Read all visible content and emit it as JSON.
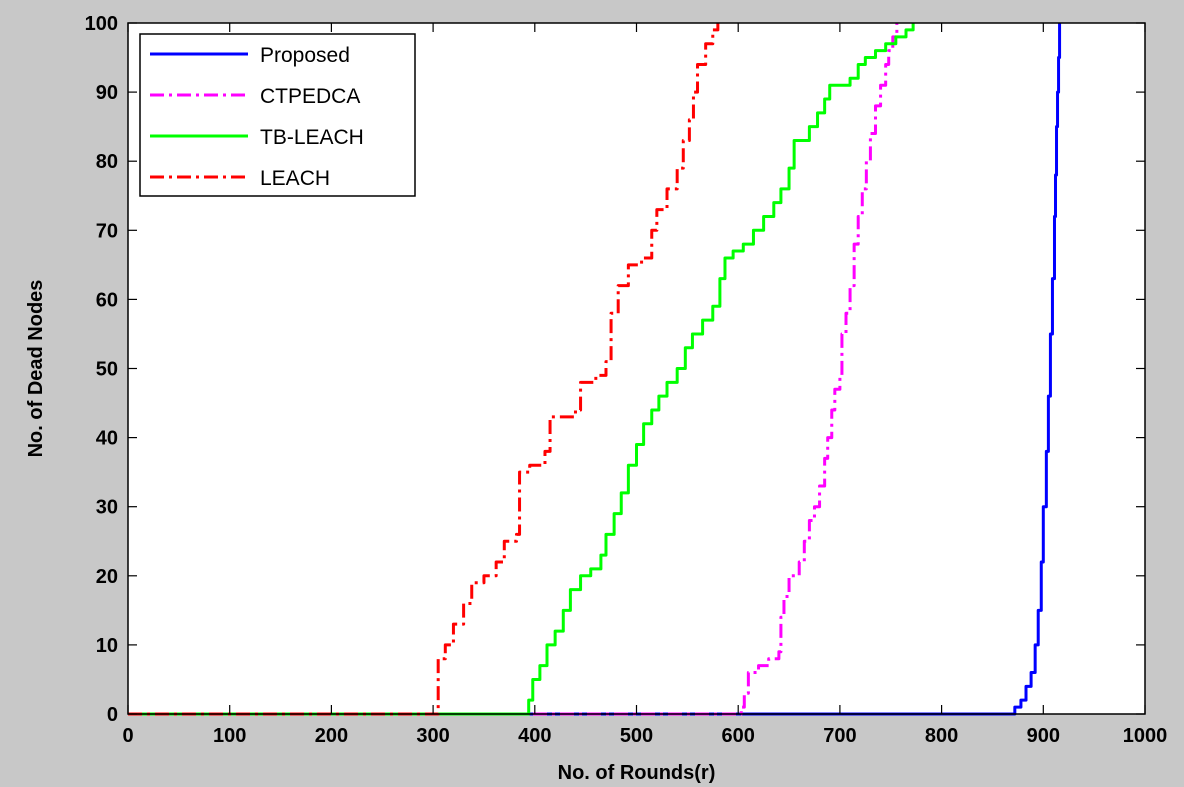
{
  "chart_data": {
    "type": "line",
    "title": "",
    "xlabel": "No. of Rounds(r)",
    "ylabel": "No. of Dead Nodes",
    "xlim": [
      0,
      1000
    ],
    "ylim": [
      0,
      100
    ],
    "xticks": [
      0,
      100,
      200,
      300,
      400,
      500,
      600,
      700,
      800,
      900,
      1000
    ],
    "yticks": [
      0,
      10,
      20,
      30,
      40,
      50,
      60,
      70,
      80,
      90,
      100
    ],
    "grid": false,
    "legend_position": "top-left",
    "series": [
      {
        "name": "Proposed",
        "color": "#0000ff",
        "style": "solid",
        "points": [
          [
            0,
            0
          ],
          [
            865,
            0
          ],
          [
            872,
            1
          ],
          [
            878,
            2
          ],
          [
            883,
            4
          ],
          [
            888,
            6
          ],
          [
            892,
            10
          ],
          [
            895,
            15
          ],
          [
            898,
            22
          ],
          [
            900,
            30
          ],
          [
            903,
            38
          ],
          [
            905,
            46
          ],
          [
            907,
            55
          ],
          [
            909,
            63
          ],
          [
            911,
            72
          ],
          [
            912,
            78
          ],
          [
            913,
            85
          ],
          [
            914,
            90
          ],
          [
            915,
            95
          ],
          [
            916,
            100
          ]
        ]
      },
      {
        "name": "CTPEDCA",
        "color": "#ff00ff",
        "style": "dashdot",
        "points": [
          [
            0,
            0
          ],
          [
            600,
            0
          ],
          [
            603,
            1
          ],
          [
            606,
            3
          ],
          [
            610,
            6
          ],
          [
            620,
            7
          ],
          [
            630,
            8
          ],
          [
            640,
            9
          ],
          [
            642,
            14
          ],
          [
            645,
            17
          ],
          [
            650,
            20
          ],
          [
            660,
            22
          ],
          [
            665,
            25
          ],
          [
            670,
            28
          ],
          [
            675,
            30
          ],
          [
            680,
            33
          ],
          [
            685,
            37
          ],
          [
            688,
            40
          ],
          [
            692,
            44
          ],
          [
            695,
            47
          ],
          [
            700,
            49
          ],
          [
            702,
            55
          ],
          [
            706,
            58
          ],
          [
            710,
            62
          ],
          [
            714,
            68
          ],
          [
            718,
            72
          ],
          [
            722,
            76
          ],
          [
            726,
            80
          ],
          [
            730,
            84
          ],
          [
            735,
            88
          ],
          [
            740,
            91
          ],
          [
            745,
            94
          ],
          [
            748,
            96
          ],
          [
            752,
            98
          ],
          [
            756,
            100
          ]
        ]
      },
      {
        "name": "TB-LEACH",
        "color": "#00ff00",
        "style": "solid",
        "points": [
          [
            0,
            0
          ],
          [
            390,
            0
          ],
          [
            394,
            2
          ],
          [
            398,
            5
          ],
          [
            405,
            7
          ],
          [
            412,
            10
          ],
          [
            420,
            12
          ],
          [
            428,
            15
          ],
          [
            435,
            18
          ],
          [
            445,
            20
          ],
          [
            455,
            21
          ],
          [
            465,
            23
          ],
          [
            470,
            26
          ],
          [
            478,
            29
          ],
          [
            485,
            32
          ],
          [
            492,
            36
          ],
          [
            500,
            39
          ],
          [
            507,
            42
          ],
          [
            515,
            44
          ],
          [
            522,
            46
          ],
          [
            530,
            48
          ],
          [
            540,
            50
          ],
          [
            548,
            53
          ],
          [
            555,
            55
          ],
          [
            565,
            57
          ],
          [
            575,
            59
          ],
          [
            582,
            63
          ],
          [
            587,
            66
          ],
          [
            595,
            67
          ],
          [
            605,
            68
          ],
          [
            615,
            70
          ],
          [
            625,
            72
          ],
          [
            635,
            74
          ],
          [
            642,
            76
          ],
          [
            650,
            79
          ],
          [
            655,
            83
          ],
          [
            665,
            83
          ],
          [
            670,
            85
          ],
          [
            678,
            87
          ],
          [
            685,
            89
          ],
          [
            690,
            91
          ],
          [
            700,
            91
          ],
          [
            710,
            92
          ],
          [
            718,
            94
          ],
          [
            725,
            95
          ],
          [
            735,
            96
          ],
          [
            745,
            97
          ],
          [
            755,
            98
          ],
          [
            765,
            99
          ],
          [
            772,
            100
          ]
        ]
      },
      {
        "name": "LEACH",
        "color": "#ff0000",
        "style": "dashdot",
        "points": [
          [
            0,
            0
          ],
          [
            302,
            0
          ],
          [
            305,
            8
          ],
          [
            312,
            10
          ],
          [
            320,
            13
          ],
          [
            330,
            16
          ],
          [
            338,
            19
          ],
          [
            350,
            20
          ],
          [
            362,
            22
          ],
          [
            370,
            25
          ],
          [
            382,
            26
          ],
          [
            385,
            35
          ],
          [
            395,
            36
          ],
          [
            410,
            38
          ],
          [
            415,
            43
          ],
          [
            440,
            44
          ],
          [
            445,
            48
          ],
          [
            460,
            49
          ],
          [
            470,
            51
          ],
          [
            475,
            58
          ],
          [
            482,
            62
          ],
          [
            492,
            65
          ],
          [
            505,
            66
          ],
          [
            515,
            70
          ],
          [
            520,
            73
          ],
          [
            530,
            76
          ],
          [
            540,
            79
          ],
          [
            546,
            83
          ],
          [
            552,
            86
          ],
          [
            556,
            90
          ],
          [
            560,
            94
          ],
          [
            568,
            97
          ],
          [
            575,
            99
          ],
          [
            580,
            100
          ]
        ]
      }
    ]
  }
}
